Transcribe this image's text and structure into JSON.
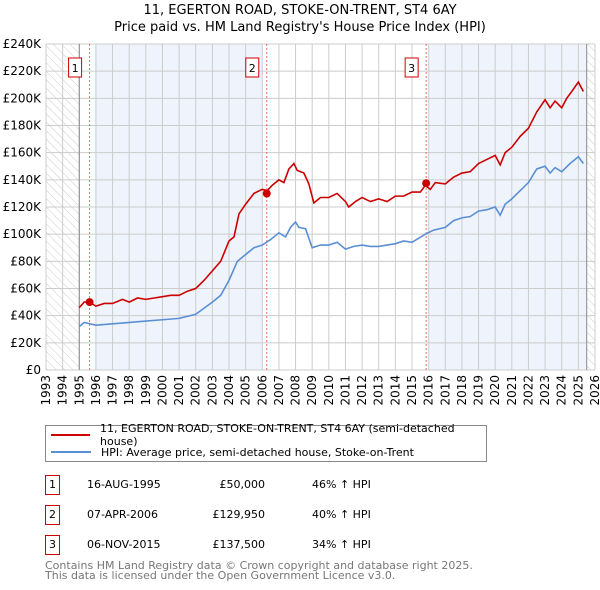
{
  "title": "11, EGERTON ROAD, STOKE-ON-TRENT, ST4 6AY",
  "subtitle": "Price paid vs. HM Land Registry's House Price Index (HPI)",
  "chart_data": {
    "type": "line",
    "title": "11, EGERTON ROAD, STOKE-ON-TRENT, ST4 6AY — Price paid vs. HM Land Registry's House Price Index (HPI)",
    "xlim": [
      1993,
      2026
    ],
    "ylim": [
      0,
      240000
    ],
    "xticks": [
      "1993",
      "1994",
      "1995",
      "1996",
      "1997",
      "1998",
      "1999",
      "2000",
      "2001",
      "2002",
      "2003",
      "2004",
      "2005",
      "2006",
      "2007",
      "2008",
      "2009",
      "2010",
      "2011",
      "2012",
      "2013",
      "2014",
      "2015",
      "2016",
      "2017",
      "2018",
      "2019",
      "2020",
      "2021",
      "2022",
      "2023",
      "2024",
      "2025",
      "2026"
    ],
    "yticks": [
      "£0",
      "£20K",
      "£40K",
      "£60K",
      "£80K",
      "£100K",
      "£120K",
      "£140K",
      "£160K",
      "£180K",
      "£200K",
      "£220K",
      "£240K"
    ],
    "grid": true,
    "colors": {
      "property": "#cc0000",
      "hpi": "#5b8fd4",
      "shade": "#eef3fc"
    },
    "series": [
      {
        "name": "11, EGERTON ROAD, STOKE-ON-TRENT, ST4 6AY (semi-detached house)",
        "x": [
          1995.0,
          1995.3,
          1995.6,
          1996,
          1996.5,
          1997,
          1997.6,
          1998,
          1998.5,
          1999,
          1999.5,
          2000,
          2000.5,
          2001,
          2001.5,
          2002,
          2002.5,
          2003,
          2003.5,
          2004,
          2004.3,
          2004.6,
          2005,
          2005.5,
          2006,
          2006.3,
          2006.6,
          2007,
          2007.3,
          2007.6,
          2007.9,
          2008.1,
          2008.5,
          2008.8,
          2009.1,
          2009.5,
          2010,
          2010.5,
          2011.0,
          2011.2,
          2011.6,
          2012,
          2012.5,
          2013,
          2013.5,
          2014,
          2014.5,
          2015,
          2015.5,
          2015.8,
          2016.1,
          2016.4,
          2017,
          2017.5,
          2018,
          2018.5,
          2019,
          2019.5,
          2020,
          2020.3,
          2020.6,
          2021,
          2021.5,
          2022,
          2022.5,
          2023,
          2023.3,
          2023.6,
          2024,
          2024.3,
          2024.6,
          2025,
          2025.3
        ],
        "y": [
          46,
          50,
          50,
          47,
          49,
          49,
          52,
          50,
          53,
          52,
          53,
          54,
          55,
          55,
          58,
          60,
          66,
          73,
          80,
          95,
          98,
          115,
          122,
          130,
          133,
          132,
          136,
          140,
          138,
          148,
          152,
          147,
          145,
          137,
          123,
          127,
          127,
          130,
          124,
          120,
          124,
          127,
          124,
          126,
          124,
          128,
          128,
          131,
          131,
          136,
          133,
          138,
          137,
          142,
          145,
          146,
          152,
          155,
          158,
          151,
          160,
          164,
          172,
          178,
          190,
          199,
          193,
          198,
          193,
          200,
          205,
          212,
          205
        ]
      },
      {
        "name": "HPI: Average price, semi-detached house, Stoke-on-Trent",
        "x": [
          1995,
          1995.3,
          1996,
          1997,
          1998,
          1999,
          2000,
          2001,
          2002,
          2003,
          2003.5,
          2004,
          2004.5,
          2005,
          2005.5,
          2006,
          2006.5,
          2007,
          2007.4,
          2007.7,
          2008,
          2008.2,
          2008.6,
          2009,
          2009.5,
          2010,
          2010.5,
          2011,
          2011.5,
          2012,
          2012.5,
          2013,
          2013.5,
          2014,
          2014.5,
          2015,
          2015.8,
          2016.3,
          2017,
          2017.5,
          2018,
          2018.5,
          2019,
          2019.5,
          2020,
          2020.3,
          2020.6,
          2021,
          2021.5,
          2022,
          2022.5,
          2023,
          2023.3,
          2023.6,
          2024,
          2024.5,
          2025,
          2025.3
        ],
        "y": [
          32,
          35,
          33,
          34,
          35,
          36,
          37,
          38,
          41,
          50,
          55,
          66,
          80,
          85,
          90,
          92,
          96,
          101,
          98,
          105,
          109,
          105,
          104,
          90,
          92,
          92,
          94,
          89,
          91,
          92,
          91,
          91,
          92,
          93,
          95,
          94,
          100,
          103,
          105,
          110,
          112,
          113,
          117,
          118,
          120,
          114,
          122,
          126,
          132,
          138,
          148,
          150,
          145,
          149,
          146,
          152,
          157,
          152
        ]
      }
    ],
    "sales": [
      {
        "label": "1",
        "x": 1995.62,
        "y": 50000,
        "date": "16-AUG-1995",
        "price": "£50,000",
        "hpi": "46% ↑ HPI"
      },
      {
        "label": "2",
        "x": 2006.27,
        "y": 129950,
        "date": "07-APR-2006",
        "price": "£129,950",
        "hpi": "40% ↑ HPI"
      },
      {
        "label": "3",
        "x": 2015.85,
        "y": 137500,
        "date": "06-NOV-2015",
        "price": "£137,500",
        "hpi": "34% ↑ HPI"
      }
    ]
  },
  "legend": {
    "property": "11, EGERTON ROAD, STOKE-ON-TRENT, ST4 6AY (semi-detached house)",
    "hpi": "HPI: Average price, semi-detached house, Stoke-on-Trent"
  },
  "footer": {
    "line1": "Contains HM Land Registry data © Crown copyright and database right 2025.",
    "line2": "This data is licensed under the Open Government Licence v3.0."
  }
}
